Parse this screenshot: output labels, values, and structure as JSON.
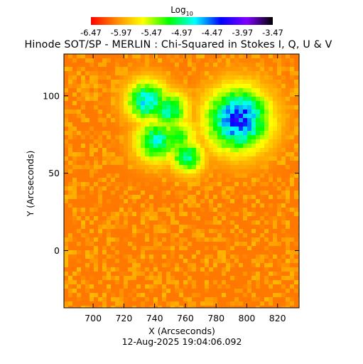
{
  "chart_data": {
    "type": "heatmap",
    "title": "Hinode SOT/SP - MERLIN : Chi-Squared in Stokes I, Q, U & V",
    "xlabel": "X (Arcseconds)",
    "ylabel": "Y (Arcseconds)",
    "xlim": [
      681,
      834
    ],
    "ylim": [
      -37,
      127
    ],
    "x_ticks": [
      700,
      720,
      740,
      760,
      780,
      800,
      820
    ],
    "y_ticks": [
      0,
      50,
      100
    ],
    "colorbar": {
      "label": "Log",
      "label_subscript": "10",
      "range": [
        -6.47,
        -3.47
      ],
      "ticks": [
        "-6.47",
        "-5.97",
        "-5.47",
        "-4.97",
        "-4.47",
        "-3.97",
        "-3.47"
      ],
      "colors": [
        "#ff0000",
        "#ff8c00",
        "#ffff00",
        "#00ff00",
        "#00ffff",
        "#0000ff",
        "#8000ff",
        "#000000"
      ]
    },
    "background_value": -6.1,
    "features": [
      {
        "x": 793,
        "y": 86,
        "value": -4.35
      },
      {
        "x": 734,
        "y": 98,
        "value": -4.75
      },
      {
        "x": 748,
        "y": 92,
        "value": -4.9
      },
      {
        "x": 740,
        "y": 72,
        "value": -4.85
      },
      {
        "x": 760,
        "y": 62,
        "value": -4.95
      },
      {
        "x": 752,
        "y": 74,
        "value": -5.2
      }
    ],
    "timestamp": "12-Aug-2025 19:04:06.092"
  }
}
